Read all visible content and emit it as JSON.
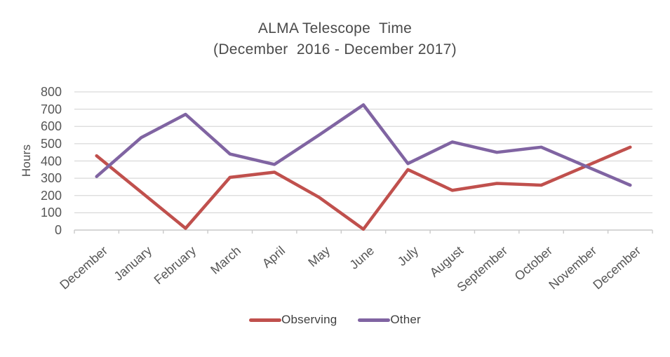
{
  "title": {
    "line1": "ALMA Telescope  Time",
    "line2": "(December  2016 - December 2017)"
  },
  "y_axis": {
    "label": "Hours",
    "ticks": [
      "800",
      "700",
      "600",
      "500",
      "400",
      "300",
      "200",
      "100",
      "0"
    ]
  },
  "legend": {
    "items": [
      {
        "label": "Observing",
        "color": "#C0504D"
      },
      {
        "label": "Other",
        "color": "#8064A2"
      }
    ]
  },
  "chart_data": {
    "type": "line",
    "title": "ALMA Telescope  Time",
    "subtitle": "(December  2016 - December 2017)",
    "xlabel": "",
    "ylabel": "Hours",
    "ylim": [
      0,
      800
    ],
    "ytick_step": 100,
    "grid": true,
    "legend_position": "bottom",
    "categories": [
      "December",
      "January",
      "February",
      "March",
      "April",
      "May",
      "June",
      "July",
      "August",
      "September",
      "October",
      "November",
      "December"
    ],
    "series": [
      {
        "name": "Observing",
        "color": "#C0504D",
        "values": [
          430,
          220,
          10,
          305,
          335,
          190,
          5,
          350,
          230,
          270,
          260,
          370,
          480
        ]
      },
      {
        "name": "Other",
        "color": "#8064A2",
        "values": [
          310,
          535,
          670,
          440,
          380,
          550,
          725,
          385,
          510,
          450,
          480,
          370,
          260
        ]
      }
    ]
  }
}
